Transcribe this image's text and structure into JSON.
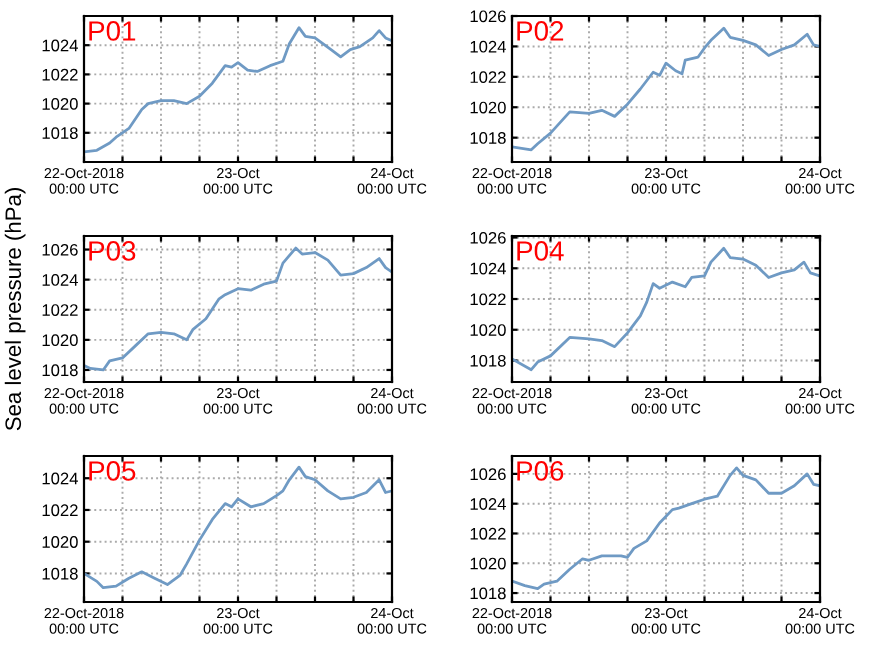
{
  "chart_data": [
    {
      "type": "line",
      "title": "P01",
      "ylim": [
        1016,
        1026
      ],
      "yticks": [
        1018,
        1020,
        1022,
        1024
      ],
      "xlim": [
        "2018-10-22T00:00",
        "2018-10-24T00:00"
      ],
      "xticks": [
        {
          "value": "2018-10-22T00:00",
          "label": "22-Oct-2018\n00:00 UTC"
        },
        {
          "value": "2018-10-22T06:00",
          "label": null
        },
        {
          "value": "2018-10-22T12:00",
          "label": null
        },
        {
          "value": "2018-10-22T18:00",
          "label": null
        },
        {
          "value": "2018-10-23T00:00",
          "label": "23-Oct\n00:00 UTC"
        },
        {
          "value": "2018-10-23T06:00",
          "label": null
        },
        {
          "value": "2018-10-23T12:00",
          "label": null
        },
        {
          "value": "2018-10-23T18:00",
          "label": null
        },
        {
          "value": "2018-10-24T00:00",
          "label": "24-Oct\n00:00 UTC"
        }
      ],
      "grid": true,
      "marker": "none",
      "line_style": "solid",
      "series": [
        {
          "color": "#6f9ac4",
          "x": [
            "2018-10-22T00:00",
            "2018-10-22T02:00",
            "2018-10-22T04:00",
            "2018-10-22T05:00",
            "2018-10-22T07:00",
            "2018-10-22T09:00",
            "2018-10-22T10:00",
            "2018-10-22T12:00",
            "2018-10-22T14:00",
            "2018-10-22T16:00",
            "2018-10-22T18:00",
            "2018-10-22T20:00",
            "2018-10-22T22:00",
            "2018-10-22T23:00",
            "2018-10-23T00:00",
            "2018-10-23T01:30",
            "2018-10-23T03:00",
            "2018-10-23T05:00",
            "2018-10-23T07:00",
            "2018-10-23T08:00",
            "2018-10-23T09:30",
            "2018-10-23T10:30",
            "2018-10-23T12:00",
            "2018-10-23T14:30",
            "2018-10-23T16:00",
            "2018-10-23T17:30",
            "2018-10-23T19:00",
            "2018-10-23T21:00",
            "2018-10-23T22:00",
            "2018-10-23T23:00",
            "2018-10-24T00:00"
          ],
          "values": [
            1016.7,
            1016.8,
            1017.3,
            1017.7,
            1018.3,
            1019.6,
            1020.0,
            1020.2,
            1020.2,
            1020.0,
            1020.5,
            1021.4,
            1022.6,
            1022.5,
            1022.8,
            1022.3,
            1022.2,
            1022.6,
            1022.9,
            1024.1,
            1025.2,
            1024.6,
            1024.5,
            1023.7,
            1023.2,
            1023.7,
            1023.9,
            1024.5,
            1025.0,
            1024.5,
            1024.3
          ]
        }
      ]
    },
    {
      "type": "line",
      "title": "P02",
      "ylim": [
        1016.4,
        1026
      ],
      "yticks": [
        1018,
        1020,
        1022,
        1024,
        1026
      ],
      "xlim": [
        "2018-10-22T00:00",
        "2018-10-24T00:00"
      ],
      "xticks": [
        {
          "value": "2018-10-22T00:00",
          "label": "22-Oct-2018\n00:00 UTC"
        },
        {
          "value": "2018-10-22T06:00",
          "label": null
        },
        {
          "value": "2018-10-22T12:00",
          "label": null
        },
        {
          "value": "2018-10-22T18:00",
          "label": null
        },
        {
          "value": "2018-10-23T00:00",
          "label": "23-Oct\n00:00 UTC"
        },
        {
          "value": "2018-10-23T06:00",
          "label": null
        },
        {
          "value": "2018-10-23T12:00",
          "label": null
        },
        {
          "value": "2018-10-23T18:00",
          "label": null
        },
        {
          "value": "2018-10-24T00:00",
          "label": "24-Oct\n00:00 UTC"
        }
      ],
      "grid": true,
      "marker": "none",
      "line_style": "solid",
      "series": [
        {
          "color": "#6f9ac4",
          "x": [
            "2018-10-22T00:00",
            "2018-10-22T03:00",
            "2018-10-22T04:00",
            "2018-10-22T06:00",
            "2018-10-22T09:00",
            "2018-10-22T12:00",
            "2018-10-22T14:00",
            "2018-10-22T16:00",
            "2018-10-22T18:00",
            "2018-10-22T20:00",
            "2018-10-22T22:00",
            "2018-10-22T23:00",
            "2018-10-23T00:00",
            "2018-10-23T01:30",
            "2018-10-23T02:30",
            "2018-10-23T03:00",
            "2018-10-23T05:00",
            "2018-10-23T06:00",
            "2018-10-23T07:00",
            "2018-10-23T09:00",
            "2018-10-23T10:00",
            "2018-10-23T12:00",
            "2018-10-23T14:00",
            "2018-10-23T16:00",
            "2018-10-23T18:00",
            "2018-10-23T20:00",
            "2018-10-23T22:00",
            "2018-10-23T23:00",
            "2018-10-24T00:00"
          ],
          "values": [
            1017.4,
            1017.2,
            1017.6,
            1018.3,
            1019.7,
            1019.6,
            1019.8,
            1019.4,
            1020.2,
            1021.2,
            1022.3,
            1022.1,
            1022.9,
            1022.4,
            1022.2,
            1023.1,
            1023.3,
            1023.9,
            1024.4,
            1025.2,
            1024.6,
            1024.4,
            1024.1,
            1023.4,
            1023.8,
            1024.1,
            1024.8,
            1024.1,
            1024.0
          ]
        }
      ]
    },
    {
      "type": "line",
      "title": "P03",
      "ylabel": "Sea level pressure (hPa)",
      "ylim": [
        1017.2,
        1026.9
      ],
      "yticks": [
        1018,
        1020,
        1022,
        1024,
        1026
      ],
      "xlim": [
        "2018-10-22T00:00",
        "2018-10-24T00:00"
      ],
      "xticks": [
        {
          "value": "2018-10-22T00:00",
          "label": "22-Oct-2018\n00:00 UTC"
        },
        {
          "value": "2018-10-22T06:00",
          "label": null
        },
        {
          "value": "2018-10-22T12:00",
          "label": null
        },
        {
          "value": "2018-10-22T18:00",
          "label": null
        },
        {
          "value": "2018-10-23T00:00",
          "label": "23-Oct\n00:00 UTC"
        },
        {
          "value": "2018-10-23T06:00",
          "label": null
        },
        {
          "value": "2018-10-23T12:00",
          "label": null
        },
        {
          "value": "2018-10-23T18:00",
          "label": null
        },
        {
          "value": "2018-10-24T00:00",
          "label": "24-Oct\n00:00 UTC"
        }
      ],
      "grid": true,
      "marker": "none",
      "line_style": "solid",
      "series": [
        {
          "color": "#6f9ac4",
          "x": [
            "2018-10-22T00:00",
            "2018-10-22T01:00",
            "2018-10-22T03:00",
            "2018-10-22T04:00",
            "2018-10-22T06:00",
            "2018-10-22T08:00",
            "2018-10-22T10:00",
            "2018-10-22T12:00",
            "2018-10-22T14:00",
            "2018-10-22T16:00",
            "2018-10-22T17:00",
            "2018-10-22T19:00",
            "2018-10-22T21:00",
            "2018-10-22T22:00",
            "2018-10-23T00:00",
            "2018-10-23T02:00",
            "2018-10-23T04:00",
            "2018-10-23T06:00",
            "2018-10-23T07:00",
            "2018-10-23T09:00",
            "2018-10-23T10:00",
            "2018-10-23T12:00",
            "2018-10-23T14:00",
            "2018-10-23T16:00",
            "2018-10-23T18:00",
            "2018-10-23T20:00",
            "2018-10-23T22:00",
            "2018-10-23T23:00",
            "2018-10-24T00:00"
          ],
          "values": [
            1018.3,
            1018.1,
            1018.0,
            1018.6,
            1018.8,
            1019.6,
            1020.4,
            1020.5,
            1020.4,
            1020.0,
            1020.7,
            1021.4,
            1022.7,
            1023.0,
            1023.4,
            1023.3,
            1023.7,
            1023.9,
            1025.1,
            1026.1,
            1025.7,
            1025.8,
            1025.3,
            1024.3,
            1024.4,
            1024.8,
            1025.4,
            1024.8,
            1024.5
          ]
        }
      ]
    },
    {
      "type": "line",
      "title": "P04",
      "ylim": [
        1016.6,
        1026.1
      ],
      "yticks": [
        1018,
        1020,
        1022,
        1024,
        1026
      ],
      "xlim": [
        "2018-10-22T00:00",
        "2018-10-24T00:00"
      ],
      "xticks": [
        {
          "value": "2018-10-22T00:00",
          "label": "22-Oct-2018\n00:00 UTC"
        },
        {
          "value": "2018-10-22T06:00",
          "label": null
        },
        {
          "value": "2018-10-22T12:00",
          "label": null
        },
        {
          "value": "2018-10-22T18:00",
          "label": null
        },
        {
          "value": "2018-10-23T00:00",
          "label": "23-Oct\n00:00 UTC"
        },
        {
          "value": "2018-10-23T06:00",
          "label": null
        },
        {
          "value": "2018-10-23T12:00",
          "label": null
        },
        {
          "value": "2018-10-23T18:00",
          "label": null
        },
        {
          "value": "2018-10-24T00:00",
          "label": "24-Oct\n00:00 UTC"
        }
      ],
      "grid": true,
      "marker": "none",
      "line_style": "solid",
      "series": [
        {
          "color": "#6f9ac4",
          "x": [
            "2018-10-22T00:00",
            "2018-10-22T03:00",
            "2018-10-22T04:00",
            "2018-10-22T06:00",
            "2018-10-22T09:00",
            "2018-10-22T12:00",
            "2018-10-22T14:00",
            "2018-10-22T16:00",
            "2018-10-22T18:00",
            "2018-10-22T20:00",
            "2018-10-22T21:00",
            "2018-10-22T22:00",
            "2018-10-22T23:00",
            "2018-10-23T01:00",
            "2018-10-23T03:00",
            "2018-10-23T04:00",
            "2018-10-23T06:00",
            "2018-10-23T07:00",
            "2018-10-23T09:00",
            "2018-10-23T10:00",
            "2018-10-23T12:00",
            "2018-10-23T14:00",
            "2018-10-23T16:00",
            "2018-10-23T18:00",
            "2018-10-23T20:00",
            "2018-10-23T21:30",
            "2018-10-23T22:30",
            "2018-10-24T00:00"
          ],
          "values": [
            1018.1,
            1017.4,
            1017.9,
            1018.3,
            1019.5,
            1019.4,
            1019.3,
            1018.9,
            1019.8,
            1020.9,
            1021.8,
            1023.0,
            1022.7,
            1023.1,
            1022.8,
            1023.4,
            1023.5,
            1024.4,
            1025.3,
            1024.7,
            1024.6,
            1024.2,
            1023.4,
            1023.7,
            1023.9,
            1024.4,
            1023.7,
            1023.5
          ]
        }
      ]
    },
    {
      "type": "line",
      "title": "P05",
      "ylim": [
        1016.2,
        1025.4
      ],
      "yticks": [
        1018,
        1020,
        1022,
        1024
      ],
      "xlim": [
        "2018-10-22T00:00",
        "2018-10-24T00:00"
      ],
      "xticks": [
        {
          "value": "2018-10-22T00:00",
          "label": "22-Oct-2018\n00:00 UTC"
        },
        {
          "value": "2018-10-22T06:00",
          "label": null
        },
        {
          "value": "2018-10-22T12:00",
          "label": null
        },
        {
          "value": "2018-10-22T18:00",
          "label": null
        },
        {
          "value": "2018-10-23T00:00",
          "label": "23-Oct\n00:00 UTC"
        },
        {
          "value": "2018-10-23T06:00",
          "label": null
        },
        {
          "value": "2018-10-23T12:00",
          "label": null
        },
        {
          "value": "2018-10-23T18:00",
          "label": null
        },
        {
          "value": "2018-10-24T00:00",
          "label": "24-Oct\n00:00 UTC"
        }
      ],
      "grid": true,
      "marker": "none",
      "line_style": "solid",
      "series": [
        {
          "color": "#6f9ac4",
          "x": [
            "2018-10-22T00:00",
            "2018-10-22T02:00",
            "2018-10-22T03:00",
            "2018-10-22T05:00",
            "2018-10-22T07:00",
            "2018-10-22T09:00",
            "2018-10-22T11:00",
            "2018-10-22T13:00",
            "2018-10-22T15:00",
            "2018-10-22T16:00",
            "2018-10-22T18:00",
            "2018-10-22T20:00",
            "2018-10-22T22:00",
            "2018-10-22T23:00",
            "2018-10-23T00:00",
            "2018-10-23T02:00",
            "2018-10-23T04:00",
            "2018-10-23T06:00",
            "2018-10-23T07:00",
            "2018-10-23T08:00",
            "2018-10-23T09:30",
            "2018-10-23T10:30",
            "2018-10-23T12:00",
            "2018-10-23T14:00",
            "2018-10-23T16:00",
            "2018-10-23T18:00",
            "2018-10-23T20:00",
            "2018-10-23T22:00",
            "2018-10-23T23:00",
            "2018-10-24T00:00"
          ],
          "values": [
            1018.0,
            1017.5,
            1017.1,
            1017.2,
            1017.7,
            1018.1,
            1017.7,
            1017.3,
            1017.9,
            1018.6,
            1020.1,
            1021.4,
            1022.4,
            1022.2,
            1022.7,
            1022.2,
            1022.4,
            1022.9,
            1023.2,
            1023.9,
            1024.7,
            1024.1,
            1023.9,
            1023.2,
            1022.7,
            1022.8,
            1023.1,
            1023.9,
            1023.1,
            1023.2
          ]
        }
      ]
    },
    {
      "type": "line",
      "title": "P06",
      "ylim": [
        1017.4,
        1027.2
      ],
      "yticks": [
        1018,
        1020,
        1022,
        1024,
        1026
      ],
      "xlim": [
        "2018-10-22T00:00",
        "2018-10-24T00:00"
      ],
      "xticks": [
        {
          "value": "2018-10-22T00:00",
          "label": "22-Oct-2018\n00:00 UTC"
        },
        {
          "value": "2018-10-22T06:00",
          "label": null
        },
        {
          "value": "2018-10-22T12:00",
          "label": null
        },
        {
          "value": "2018-10-22T18:00",
          "label": null
        },
        {
          "value": "2018-10-23T00:00",
          "label": "23-Oct\n00:00 UTC"
        },
        {
          "value": "2018-10-23T06:00",
          "label": null
        },
        {
          "value": "2018-10-23T12:00",
          "label": null
        },
        {
          "value": "2018-10-23T18:00",
          "label": null
        },
        {
          "value": "2018-10-24T00:00",
          "label": "24-Oct\n00:00 UTC"
        }
      ],
      "grid": true,
      "marker": "none",
      "line_style": "solid",
      "series": [
        {
          "color": "#6f9ac4",
          "x": [
            "2018-10-22T00:00",
            "2018-10-22T02:00",
            "2018-10-22T04:00",
            "2018-10-22T05:00",
            "2018-10-22T07:00",
            "2018-10-22T09:00",
            "2018-10-22T11:00",
            "2018-10-22T12:00",
            "2018-10-22T14:00",
            "2018-10-22T17:00",
            "2018-10-22T18:00",
            "2018-10-22T19:00",
            "2018-10-22T21:00",
            "2018-10-22T23:00",
            "2018-10-23T01:00",
            "2018-10-23T02:00",
            "2018-10-23T04:00",
            "2018-10-23T06:00",
            "2018-10-23T08:00",
            "2018-10-23T10:00",
            "2018-10-23T11:00",
            "2018-10-23T12:00",
            "2018-10-23T14:00",
            "2018-10-23T16:00",
            "2018-10-23T18:00",
            "2018-10-23T20:00",
            "2018-10-23T22:00",
            "2018-10-23T23:00",
            "2018-10-24T00:00"
          ],
          "values": [
            1018.8,
            1018.5,
            1018.3,
            1018.6,
            1018.8,
            1019.6,
            1020.3,
            1020.2,
            1020.5,
            1020.5,
            1020.4,
            1021.0,
            1021.5,
            1022.7,
            1023.6,
            1023.7,
            1024.0,
            1024.3,
            1024.5,
            1025.9,
            1026.4,
            1025.9,
            1025.6,
            1024.7,
            1024.7,
            1025.2,
            1026.0,
            1025.3,
            1025.2
          ]
        }
      ]
    }
  ]
}
